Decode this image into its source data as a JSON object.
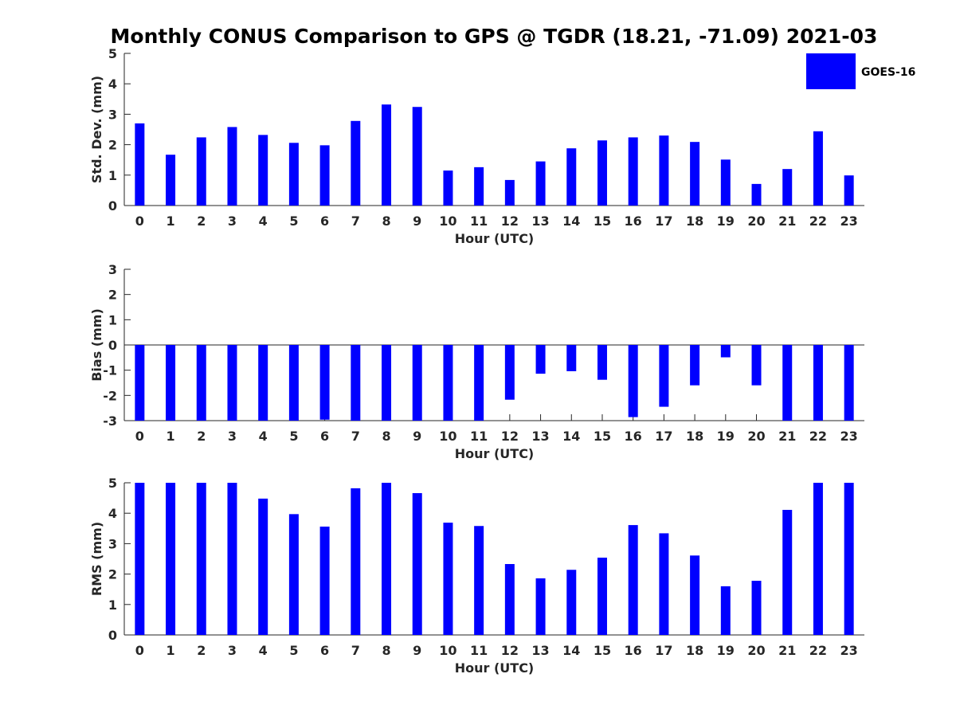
{
  "figure": {
    "title": "Monthly CONUS Comparison to GPS @ TGDR (18.21, -71.09) 2021-03",
    "legend": {
      "label": "GOES-16",
      "color": "#0000ff",
      "placement": "top-right"
    }
  },
  "chart_data": [
    {
      "type": "bar",
      "series": [
        {
          "name": "GOES-16",
          "color": "#0000ff",
          "values": [
            2.7,
            1.67,
            2.24,
            2.58,
            2.32,
            2.06,
            1.98,
            2.78,
            3.32,
            3.24,
            1.15,
            1.26,
            0.84,
            1.45,
            1.88,
            2.14,
            2.24,
            2.3,
            2.09,
            1.51,
            0.71,
            1.2,
            2.44,
            0.99
          ]
        }
      ],
      "categories": [
        "0",
        "1",
        "2",
        "3",
        "4",
        "5",
        "6",
        "7",
        "8",
        "9",
        "10",
        "11",
        "12",
        "13",
        "14",
        "15",
        "16",
        "17",
        "18",
        "19",
        "20",
        "21",
        "22",
        "23"
      ],
      "xlabel": "Hour (UTC)",
      "ylabel": "Std. Dev. (mm)",
      "ylim": [
        0,
        5
      ],
      "yticks": [
        "0",
        "1",
        "2",
        "3",
        "4",
        "5"
      ],
      "zero_line": false
    },
    {
      "type": "bar",
      "series": [
        {
          "name": "GOES-16",
          "color": "#0000ff",
          "values": [
            -3,
            -3,
            -3,
            -3,
            -3,
            -3,
            -2.96,
            -3,
            -3,
            -3,
            -3,
            -3,
            -2.17,
            -1.14,
            -1.04,
            -1.38,
            -2.86,
            -2.45,
            -1.6,
            -0.49,
            -1.6,
            -3,
            -3,
            -3
          ]
        }
      ],
      "categories": [
        "0",
        "1",
        "2",
        "3",
        "4",
        "5",
        "6",
        "7",
        "8",
        "9",
        "10",
        "11",
        "12",
        "13",
        "14",
        "15",
        "16",
        "17",
        "18",
        "19",
        "20",
        "21",
        "22",
        "23"
      ],
      "xlabel": "Hour (UTC)",
      "ylabel": "Bias (mm)",
      "ylim": [
        -3,
        3
      ],
      "yticks": [
        "-3",
        "-2",
        "-1",
        "0",
        "1",
        "2",
        "3"
      ],
      "zero_line": true
    },
    {
      "type": "bar",
      "series": [
        {
          "name": "GOES-16",
          "color": "#0000ff",
          "values": [
            5,
            5,
            5,
            5,
            4.48,
            3.97,
            3.56,
            4.82,
            5,
            4.66,
            3.69,
            3.58,
            2.33,
            1.86,
            2.14,
            2.54,
            3.61,
            3.34,
            2.61,
            1.6,
            1.78,
            4.11,
            5,
            5
          ]
        }
      ],
      "categories": [
        "0",
        "1",
        "2",
        "3",
        "4",
        "5",
        "6",
        "7",
        "8",
        "9",
        "10",
        "11",
        "12",
        "13",
        "14",
        "15",
        "16",
        "17",
        "18",
        "19",
        "20",
        "21",
        "22",
        "23"
      ],
      "xlabel": "Hour (UTC)",
      "ylabel": "RMS (mm)",
      "ylim": [
        0,
        5
      ],
      "yticks": [
        "0",
        "1",
        "2",
        "3",
        "4",
        "5"
      ],
      "zero_line": false
    }
  ]
}
